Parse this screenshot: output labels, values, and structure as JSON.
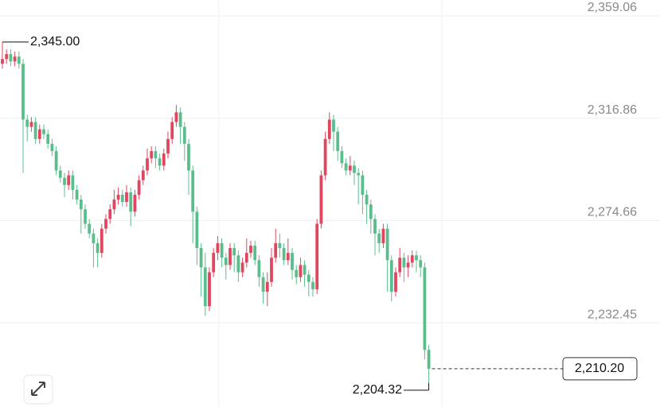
{
  "chart_data": {
    "type": "candlestick",
    "up_color": "#e0475f",
    "down_color": "#5cbd8c",
    "ylim": [
      2194.42,
      2362.34
    ],
    "yticks": [
      {
        "value": 2359.06,
        "label": "2,359.06"
      },
      {
        "value": 2316.86,
        "label": "2,316.86"
      },
      {
        "value": 2274.66,
        "label": "2,274.66"
      },
      {
        "value": 2232.45,
        "label": "2,232.45"
      }
    ],
    "grid": true,
    "high_marker": {
      "value": 2345.0,
      "label": "2,345.00"
    },
    "low_marker": {
      "value": 2204.32,
      "label": "2,204.32"
    },
    "last_price": {
      "value": 2210.2,
      "label": "2,210.20"
    },
    "candles": [
      [
        2336,
        2345,
        2334,
        2338
      ],
      [
        2338,
        2342,
        2336,
        2340
      ],
      [
        2340,
        2342,
        2335,
        2337
      ],
      [
        2337,
        2341,
        2335,
        2339
      ],
      [
        2339,
        2341,
        2334,
        2336
      ],
      [
        2336,
        2338,
        2291,
        2313
      ],
      [
        2313,
        2315,
        2304,
        2310
      ],
      [
        2310,
        2314,
        2308,
        2312
      ],
      [
        2312,
        2314,
        2303,
        2305
      ],
      [
        2305,
        2311,
        2303,
        2309
      ],
      [
        2309,
        2311,
        2305,
        2307
      ],
      [
        2307,
        2309,
        2301,
        2303
      ],
      [
        2303,
        2305,
        2298,
        2300
      ],
      [
        2300,
        2302,
        2290,
        2292
      ],
      [
        2292,
        2294,
        2287,
        2289
      ],
      [
        2289,
        2291,
        2281,
        2286
      ],
      [
        2286,
        2292,
        2284,
        2290
      ],
      [
        2290,
        2292,
        2280,
        2284
      ],
      [
        2284,
        2286,
        2278,
        2280
      ],
      [
        2280,
        2282,
        2266,
        2276
      ],
      [
        2276,
        2278,
        2268,
        2270
      ],
      [
        2270,
        2272,
        2264,
        2266
      ],
      [
        2266,
        2268,
        2252,
        2262
      ],
      [
        2262,
        2264,
        2252,
        2258
      ],
      [
        2258,
        2270,
        2256,
        2268
      ],
      [
        2268,
        2274,
        2266,
        2272
      ],
      [
        2272,
        2278,
        2270,
        2276
      ],
      [
        2276,
        2284,
        2274,
        2280
      ],
      [
        2280,
        2285,
        2278,
        2282
      ],
      [
        2282,
        2284,
        2277,
        2279
      ],
      [
        2279,
        2286,
        2277,
        2283
      ],
      [
        2283,
        2285,
        2269,
        2275
      ],
      [
        2275,
        2284,
        2273,
        2282
      ],
      [
        2282,
        2290,
        2280,
        2288
      ],
      [
        2288,
        2294,
        2286,
        2292
      ],
      [
        2292,
        2301,
        2290,
        2297
      ],
      [
        2297,
        2302,
        2295,
        2300
      ],
      [
        2300,
        2302,
        2293,
        2297
      ],
      [
        2297,
        2299,
        2292,
        2294
      ],
      [
        2294,
        2301,
        2292,
        2299
      ],
      [
        2299,
        2308,
        2297,
        2305
      ],
      [
        2305,
        2314,
        2303,
        2312
      ],
      [
        2312,
        2319,
        2310,
        2316
      ],
      [
        2316,
        2318,
        2303,
        2310
      ],
      [
        2310,
        2312,
        2296,
        2303
      ],
      [
        2303,
        2305,
        2282,
        2292
      ],
      [
        2292,
        2294,
        2262,
        2275
      ],
      [
        2275,
        2277,
        2253,
        2260
      ],
      [
        2260,
        2262,
        2240,
        2252
      ],
      [
        2252,
        2258,
        2232,
        2236
      ],
      [
        2236,
        2252,
        2234,
        2250
      ],
      [
        2250,
        2260,
        2248,
        2258
      ],
      [
        2258,
        2265,
        2255,
        2262
      ],
      [
        2262,
        2264,
        2252,
        2256
      ],
      [
        2256,
        2258,
        2247,
        2253
      ],
      [
        2253,
        2262,
        2251,
        2260
      ],
      [
        2260,
        2262,
        2250,
        2257
      ],
      [
        2257,
        2259,
        2246,
        2250
      ],
      [
        2250,
        2256,
        2248,
        2254
      ],
      [
        2254,
        2264,
        2252,
        2258
      ],
      [
        2258,
        2263,
        2256,
        2261
      ],
      [
        2261,
        2263,
        2253,
        2255
      ],
      [
        2255,
        2257,
        2244,
        2248
      ],
      [
        2248,
        2250,
        2237,
        2242
      ],
      [
        2242,
        2250,
        2236,
        2246
      ],
      [
        2246,
        2260,
        2244,
        2256
      ],
      [
        2256,
        2268,
        2254,
        2262
      ],
      [
        2262,
        2266,
        2256,
        2260
      ],
      [
        2260,
        2262,
        2253,
        2255
      ],
      [
        2255,
        2264,
        2253,
        2258
      ],
      [
        2258,
        2260,
        2247,
        2251
      ],
      [
        2251,
        2253,
        2245,
        2248
      ],
      [
        2248,
        2256,
        2246,
        2253
      ],
      [
        2253,
        2255,
        2244,
        2249
      ],
      [
        2249,
        2251,
        2240,
        2246
      ],
      [
        2246,
        2248,
        2240,
        2243
      ],
      [
        2243,
        2272,
        2241,
        2270
      ],
      [
        2270,
        2292,
        2268,
        2290
      ],
      [
        2290,
        2308,
        2288,
        2305
      ],
      [
        2305,
        2316,
        2303,
        2313
      ],
      [
        2313,
        2315,
        2300,
        2308
      ],
      [
        2308,
        2310,
        2296,
        2300
      ],
      [
        2300,
        2302,
        2293,
        2295
      ],
      [
        2295,
        2297,
        2290,
        2292
      ],
      [
        2292,
        2298,
        2290,
        2294
      ],
      [
        2294,
        2296,
        2286,
        2291
      ],
      [
        2291,
        2293,
        2278,
        2290
      ],
      [
        2290,
        2292,
        2274,
        2282
      ],
      [
        2282,
        2284,
        2270,
        2278
      ],
      [
        2278,
        2280,
        2266,
        2272
      ],
      [
        2272,
        2274,
        2257,
        2266
      ],
      [
        2266,
        2268,
        2258,
        2262
      ],
      [
        2262,
        2270,
        2260,
        2268
      ],
      [
        2268,
        2270,
        2242,
        2255
      ],
      [
        2255,
        2257,
        2238,
        2242
      ],
      [
        2242,
        2252,
        2240,
        2250
      ],
      [
        2250,
        2260,
        2248,
        2256
      ],
      [
        2256,
        2258,
        2246,
        2252
      ],
      [
        2252,
        2257,
        2248,
        2254
      ],
      [
        2254,
        2259,
        2252,
        2257
      ],
      [
        2257,
        2259,
        2250,
        2255
      ],
      [
        2255,
        2257,
        2248,
        2252
      ],
      [
        2252,
        2254,
        2214,
        2218
      ],
      [
        2218,
        2220,
        2204.32,
        2210.2
      ]
    ]
  }
}
